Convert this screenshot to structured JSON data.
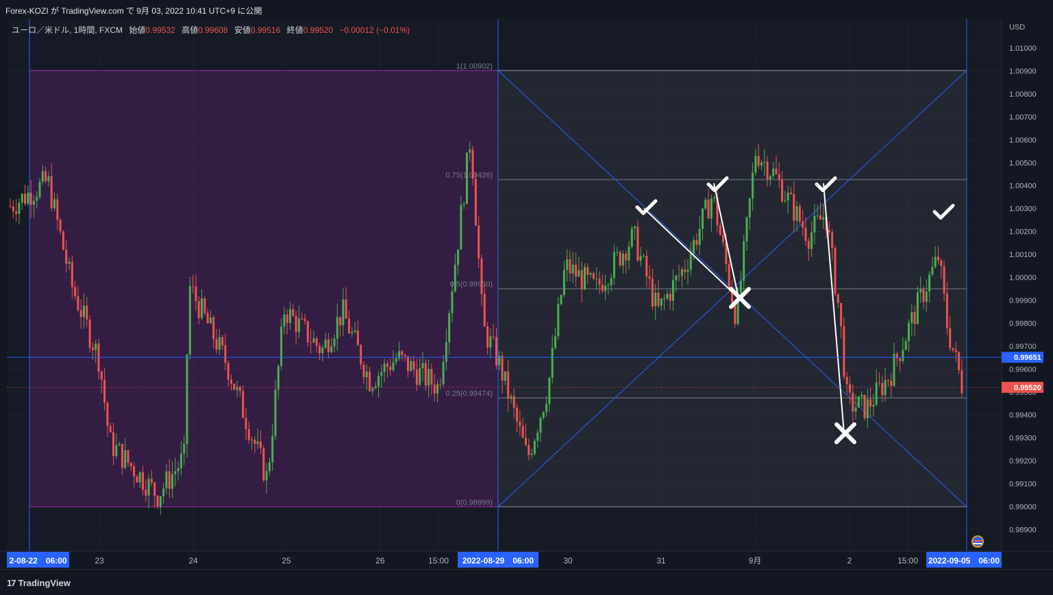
{
  "header": {
    "title": "Forex-KOZI が TradingView.com で 9月 03, 2022 10:41 UTC+9 に公開"
  },
  "legend": {
    "symbol": "ユーロ／米ドル, 1時間, FXCM",
    "open_label": "始値",
    "open": "0.99532",
    "high_label": "高値",
    "high": "0.99608",
    "low_label": "安値",
    "low": "0.99516",
    "close_label": "終値",
    "close": "0.99520",
    "change": "−0.00012 (−0.01%)"
  },
  "price_axis": {
    "currency": "USD",
    "min": 0.9884,
    "max": 1.0112,
    "ticks": [
      "1.01000",
      "1.00900",
      "1.00800",
      "1.00700",
      "1.00600",
      "1.00500",
      "1.00400",
      "1.00300",
      "1.00200",
      "1.00100",
      "1.00000",
      "0.99900",
      "0.99800",
      "0.99700",
      "0.99600",
      "0.99500",
      "0.99400",
      "0.99300",
      "0.99200",
      "0.99100",
      "0.99000",
      "0.98900"
    ],
    "crosshair_label": "0.99651",
    "last_price_label": "0.99520"
  },
  "time_axis": {
    "labels": [
      "23",
      "24",
      "25",
      "26",
      "15:00",
      "30",
      "31",
      "9月",
      "2",
      "15:00"
    ],
    "highlight_left": "2-08-22　06:00",
    "highlight_mid": "2022-08-29　06:00",
    "highlight_right": "2022-09-05　06:00"
  },
  "fib_levels": [
    {
      "label": "1(1.00902)",
      "price": 1.00902
    },
    {
      "label": "0.75(1.00426)",
      "price": 1.00426
    },
    {
      "label": "0.5(0.99950)",
      "price": 0.9995
    },
    {
      "label": "0.25(0.99474)",
      "price": 0.99474
    },
    {
      "label": "0(0.98999)",
      "price": 0.98999
    }
  ],
  "chart_data": {
    "type": "candlestick",
    "symbol": "EUR/USD",
    "timeframe": "1H",
    "period": [
      "2022-08-22",
      "2022-09-05"
    ],
    "price_range": [
      0.9884,
      1.0112
    ],
    "crosshair_price": 0.99651,
    "last_close": 0.9952,
    "annotations": [
      {
        "type": "check",
        "price": 1.003
      },
      {
        "type": "check",
        "price": 1.004
      },
      {
        "type": "cross",
        "price": 0.9991
      },
      {
        "type": "check",
        "price": 1.004
      },
      {
        "type": "cross",
        "price": 0.9932
      },
      {
        "type": "check",
        "price": 1.0028
      }
    ],
    "colors": {
      "up": "#26a69a",
      "down": "#ef5350",
      "bull_candle": "#4caf50",
      "shade_purple": "#9c27b0"
    }
  },
  "branding": {
    "logo_text": "TradingView"
  },
  "colors": {
    "background": "#131722",
    "accent_blue": "#2962ff",
    "price_red": "#ef5350"
  }
}
